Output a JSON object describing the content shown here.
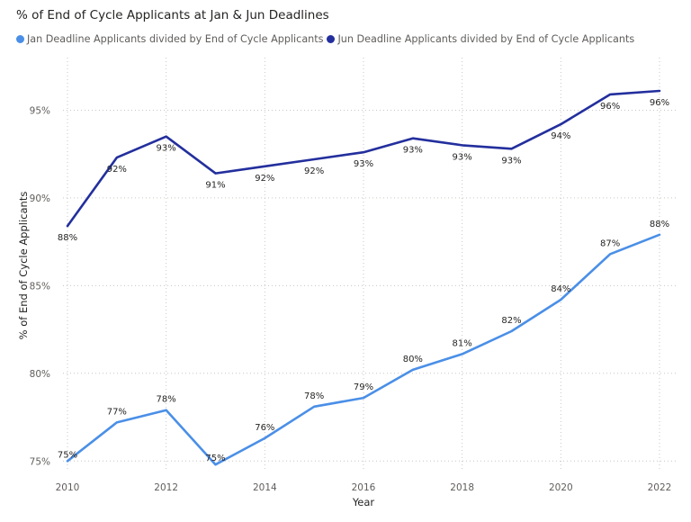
{
  "chart_data": {
    "type": "line",
    "title": "% of End of Cycle Applicants at Jan & Jun Deadlines",
    "xlabel": "Year",
    "ylabel": "% of End of Cycle Applicants",
    "x": [
      2010,
      2011,
      2012,
      2013,
      2014,
      2015,
      2016,
      2017,
      2018,
      2019,
      2020,
      2021,
      2022
    ],
    "x_ticks": [
      "2010",
      "2012",
      "2014",
      "2016",
      "2018",
      "2020",
      "2022"
    ],
    "y_ticks": [
      "75%",
      "80%",
      "85%",
      "90%",
      "95%"
    ],
    "ylim": [
      74.5,
      98
    ],
    "grid": "dotted",
    "legend_position": "top-left",
    "series": [
      {
        "name": "Jan Deadline Applicants divided by End of Cycle Applicants",
        "color": "#4a8fe7",
        "values": [
          75.0,
          77.2,
          77.9,
          74.8,
          76.3,
          78.1,
          78.6,
          80.2,
          81.1,
          82.4,
          84.2,
          86.8,
          87.9
        ],
        "labels": [
          "75%",
          "77%",
          "78%",
          "75%",
          "76%",
          "78%",
          "79%",
          "80%",
          "81%",
          "82%",
          "84%",
          "87%",
          "88%"
        ]
      },
      {
        "name": "Jun Deadline Applicants divided by End of Cycle Applicants",
        "color": "#232f9d",
        "values": [
          88.4,
          92.3,
          93.5,
          91.4,
          91.8,
          92.2,
          92.6,
          93.4,
          93.0,
          92.8,
          94.2,
          95.9,
          96.1
        ],
        "labels": [
          "88%",
          "92%",
          "93%",
          "91%",
          "92%",
          "92%",
          "93%",
          "93%",
          "93%",
          "93%",
          "94%",
          "96%",
          "96%"
        ]
      }
    ]
  }
}
